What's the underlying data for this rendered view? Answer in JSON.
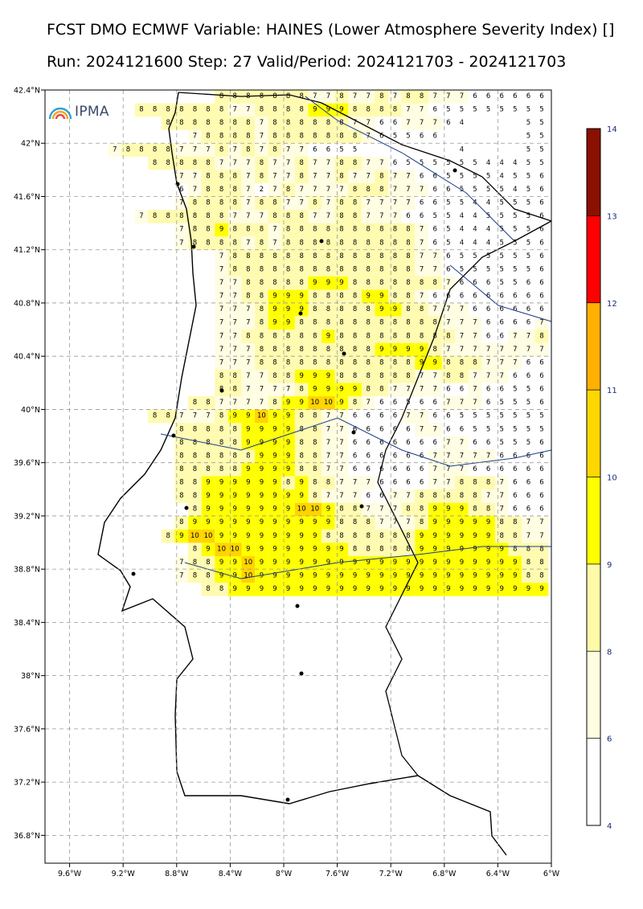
{
  "header": {
    "title_line1": "FCST DMO ECMWF Variable: HAINES (Lower Atmosphere Severity Index) []",
    "title_line2": "Run: 2024121600 Step: 27 Valid/Period: 2024121703 - 2024121703"
  },
  "logo": {
    "text": "IPMA",
    "icon": "ipma-arcs-icon"
  },
  "axes": {
    "lon_ticks": [
      "9.6°W",
      "9.2°W",
      "8.8°W",
      "8.4°W",
      "8°W",
      "7.6°W",
      "7.2°W",
      "6.8°W",
      "6.4°W",
      "6°W"
    ],
    "lat_ticks": [
      "42.4°N",
      "42°N",
      "41.6°N",
      "41.2°N",
      "40.8°N",
      "40.4°N",
      "40°N",
      "39.6°N",
      "39.2°N",
      "38.8°N",
      "38.4°N",
      "38°N",
      "37.6°N",
      "37.2°N",
      "36.8°N"
    ]
  },
  "colorbar": {
    "labels": [
      "4",
      "6",
      "8",
      "9",
      "10",
      "11",
      "12",
      "13",
      "14"
    ],
    "colors": [
      "#ffffff",
      "#fffde0",
      "#fffaa8",
      "#ffff00",
      "#ffd700",
      "#ffb000",
      "#ff0000",
      "#8b1000"
    ]
  },
  "grid_colors": {
    "5": "#ffffff",
    "6": "#ffffff",
    "7": "#fffde2",
    "8": "#fffbb0",
    "9": "#ffff00",
    "10": "#ffd400",
    "11": "#ffbf00"
  },
  "map_data": {
    "lon0_W": 6.0,
    "lat0_N": 42.4,
    "step_deg": 0.1,
    "rows": [
      "________________8888888778778788777666666",
      "________________8888888778888999888877655555555",
      "________________88888887888888776677764____55",
      "________________7888878888888765566______55",
      "________________7888877787878776655_______4____55",
      "________________888887778778778877655555544455",
      "________________7788878778778778776655554556",
      "________________6788872787777888777665555456",
      "________________7888878877878877776655445556",
      "________________7888888777888778877766554455556",
      "________________7889888788888888887654445556",
      "________________7888878788888888887654445556",
      "________________7888888888888887765555556",
      "________________7888888888888887765555556",
      "________________7788888999888888876665566",
      "________________7788999888899887666666666",
      "________________7778999888889988777666666",
      "________________7778998888888888877766667",
      "________________7788888898888888887766778",
      "________________7778888888889999877777777",
      "________________7778888888888889988877766",
      "________________8877889998888887788777666",
      "________________8877778999988777766766556",
      "________________88777789910109876656677765556",
      "________________8877789910998877666677665555555",
      "________________8888899998877666667766555555",
      "________________8888899998877666666677665556",
      "________________8888889998877666666777776666",
      "________________8888899998877666666777666666",
      "________________8899999989887776666778887666",
      "________________8899999999877766778888877666",
      "________________89999999101098877788999887666",
      "________________8999999999998887778999998877",
      "________________8910109999999988888889999998877",
      "________________89101099999999888889999999888",
      "________________78899109999999999999999999988",
      "________________78899109999999999999999999988",
      "________________88999999999999999999999999"
    ]
  }
}
